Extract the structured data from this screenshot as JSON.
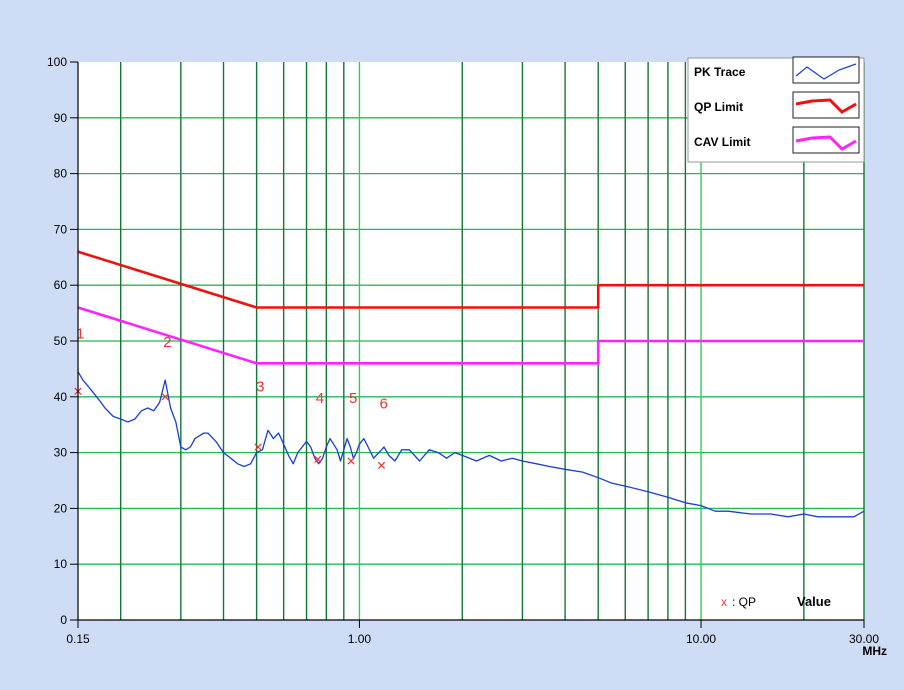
{
  "chart_data": {
    "type": "line",
    "x_scale": "log",
    "y_scale": "linear",
    "xlim": [
      0.15,
      30
    ],
    "ylim": [
      0,
      100
    ],
    "unit_label": "MHz",
    "y_ticks": [
      0,
      10,
      20,
      30,
      40,
      50,
      60,
      70,
      80,
      90,
      100
    ],
    "x_tick_labels": [
      {
        "value": 0.15,
        "label": "0.15"
      },
      {
        "value": 1.0,
        "label": "1.00"
      },
      {
        "value": 10.0,
        "label": "10.00"
      },
      {
        "value": 30.0,
        "label": "30.00"
      }
    ],
    "x_gridlines": [
      0.2,
      0.3,
      0.4,
      0.5,
      0.6,
      0.7,
      0.8,
      0.9,
      1.0,
      2,
      3,
      4,
      5,
      6,
      7,
      8,
      9,
      10,
      20,
      30
    ],
    "y_gridlines": [
      10,
      20,
      30,
      40,
      50,
      60,
      70,
      80,
      90
    ],
    "grid": true,
    "legend_position": "top-right",
    "colors": {
      "pk_trace": "#1a3fd0",
      "qp_limit": "#ee1111",
      "cav_limit": "#ff22ff",
      "qp_marker": "#ee3333",
      "x_grid": "#117733",
      "y_grid": "#22bb55",
      "plot_background": "#ffffff",
      "frame_background": "#cfdcf6"
    },
    "series": [
      {
        "name": "PK Trace",
        "x": [
          0.15,
          0.155,
          0.16,
          0.165,
          0.17,
          0.175,
          0.18,
          0.19,
          0.2,
          0.21,
          0.22,
          0.23,
          0.24,
          0.25,
          0.26,
          0.27,
          0.28,
          0.29,
          0.3,
          0.31,
          0.32,
          0.33,
          0.35,
          0.36,
          0.38,
          0.4,
          0.42,
          0.44,
          0.46,
          0.48,
          0.5,
          0.52,
          0.54,
          0.56,
          0.58,
          0.6,
          0.62,
          0.64,
          0.66,
          0.68,
          0.7,
          0.72,
          0.74,
          0.76,
          0.78,
          0.8,
          0.82,
          0.84,
          0.86,
          0.88,
          0.9,
          0.92,
          0.94,
          0.96,
          0.98,
          1.0,
          1.03,
          1.06,
          1.1,
          1.14,
          1.18,
          1.22,
          1.27,
          1.33,
          1.4,
          1.5,
          1.6,
          1.7,
          1.8,
          1.9,
          2.0,
          2.2,
          2.4,
          2.6,
          2.8,
          3.0,
          3.3,
          3.6,
          4.0,
          4.5,
          5.0,
          5.5,
          6.0,
          7.0,
          8.0,
          9.0,
          10.0,
          11.0,
          12.0,
          14.0,
          16.0,
          18.0,
          20.0,
          22.0,
          24.0,
          26.0,
          28.0,
          30.0
        ],
        "y": [
          44.5,
          43,
          42,
          41,
          40,
          39,
          38,
          36.5,
          36,
          35.5,
          36,
          37.5,
          38,
          37.5,
          39,
          43,
          38,
          35.5,
          31,
          30.5,
          31,
          32.5,
          33.5,
          33.5,
          32,
          30,
          29,
          28,
          27.5,
          28,
          30,
          30.5,
          34,
          32.5,
          33.5,
          31.5,
          29.5,
          28,
          30,
          31,
          32,
          31,
          29,
          28,
          29,
          31,
          32.5,
          31.5,
          30.5,
          28.5,
          30.5,
          32.5,
          31,
          29,
          30,
          31.5,
          32.5,
          31,
          29,
          30,
          31,
          29.5,
          28.5,
          30.5,
          30.5,
          28.5,
          30.5,
          30,
          29,
          30,
          29.5,
          28.5,
          29.5,
          28.5,
          29,
          28.5,
          28,
          27.5,
          27,
          26.5,
          25.5,
          24.5,
          24,
          23,
          22,
          21,
          20.5,
          19.5,
          19.5,
          19,
          19,
          18.5,
          19,
          18.5,
          18.5,
          18.5,
          18.5,
          19.5
        ]
      },
      {
        "name": "QP Limit",
        "x": [
          0.15,
          0.5,
          5.0,
          5.0,
          30.0
        ],
        "y": [
          66,
          56,
          56,
          60,
          60
        ]
      },
      {
        "name": "CAV Limit",
        "x": [
          0.15,
          0.5,
          5.0,
          5.0,
          30.0
        ],
        "y": [
          56,
          46,
          46,
          50,
          50
        ]
      }
    ],
    "qp_markers": [
      {
        "label": "1",
        "x": 0.15,
        "y": 41.0,
        "label_y": 51.5
      },
      {
        "label": "2",
        "x": 0.27,
        "y": 40.0,
        "label_y": 50.0
      },
      {
        "label": "3",
        "x": 0.505,
        "y": 31.0,
        "label_y": 42.0
      },
      {
        "label": "4",
        "x": 0.755,
        "y": 28.8,
        "label_y": 40.0
      },
      {
        "label": "5",
        "x": 0.945,
        "y": 28.5,
        "label_y": 40.0
      },
      {
        "label": "6",
        "x": 1.16,
        "y": 27.7,
        "label_y": 39.0
      }
    ],
    "marker_note": {
      "symbol": "x",
      "text": ": QP",
      "value_label": "Value"
    }
  }
}
